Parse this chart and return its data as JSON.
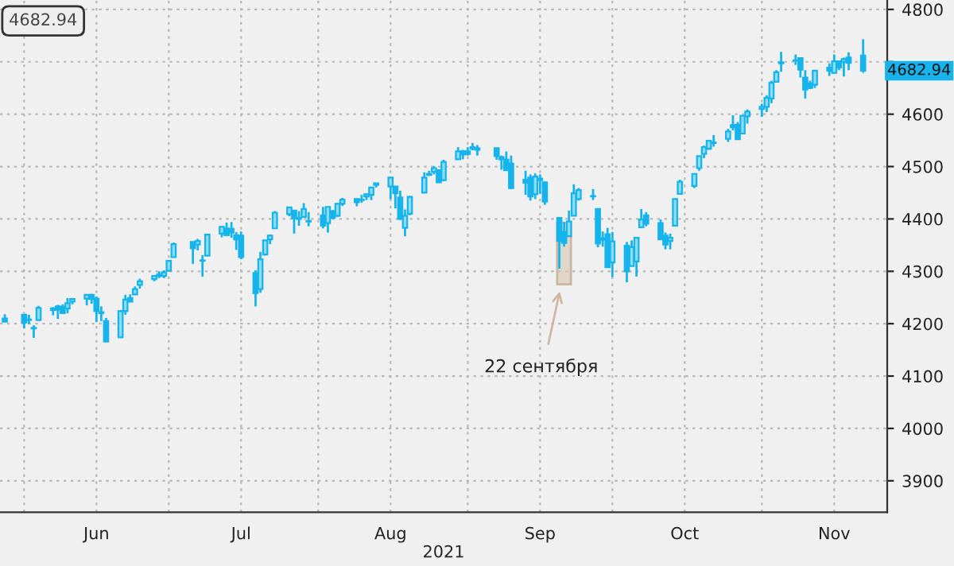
{
  "chart_data": {
    "type": "candlestick",
    "xlabel": "2021",
    "x": [
      "2021-05-28",
      "2021-06-01",
      "2021-06-02",
      "2021-06-03",
      "2021-06-04",
      "2021-06-07",
      "2021-06-08",
      "2021-06-09",
      "2021-06-10",
      "2021-06-11",
      "2021-06-14",
      "2021-06-15",
      "2021-06-16",
      "2021-06-17",
      "2021-06-18",
      "2021-06-21",
      "2021-06-22",
      "2021-06-23",
      "2021-06-24",
      "2021-06-25",
      "2021-06-28",
      "2021-06-29",
      "2021-06-30",
      "2021-07-01",
      "2021-07-02",
      "2021-07-06",
      "2021-07-07",
      "2021-07-08",
      "2021-07-09",
      "2021-07-12",
      "2021-07-13",
      "2021-07-14",
      "2021-07-15",
      "2021-07-16",
      "2021-07-19",
      "2021-07-20",
      "2021-07-21",
      "2021-07-22",
      "2021-07-23",
      "2021-07-26",
      "2021-07-27",
      "2021-07-28",
      "2021-07-29",
      "2021-07-30",
      "2021-08-02",
      "2021-08-03",
      "2021-08-04",
      "2021-08-05",
      "2021-08-06",
      "2021-08-09",
      "2021-08-10",
      "2021-08-11",
      "2021-08-12",
      "2021-08-13",
      "2021-08-16",
      "2021-08-17",
      "2021-08-18",
      "2021-08-19",
      "2021-08-20",
      "2021-08-23",
      "2021-08-24",
      "2021-08-25",
      "2021-08-26",
      "2021-08-27",
      "2021-08-30",
      "2021-08-31",
      "2021-09-01",
      "2021-09-02",
      "2021-09-03",
      "2021-09-07",
      "2021-09-08",
      "2021-09-09",
      "2021-09-10",
      "2021-09-13",
      "2021-09-14",
      "2021-09-15",
      "2021-09-16",
      "2021-09-17",
      "2021-09-20",
      "2021-09-21",
      "2021-09-22",
      "2021-09-23",
      "2021-09-24",
      "2021-09-27",
      "2021-09-28",
      "2021-09-29",
      "2021-09-30",
      "2021-10-01",
      "2021-10-04",
      "2021-10-05",
      "2021-10-06",
      "2021-10-07",
      "2021-10-08",
      "2021-10-11",
      "2021-10-12",
      "2021-10-13",
      "2021-10-14",
      "2021-10-15",
      "2021-10-18",
      "2021-10-19",
      "2021-10-20",
      "2021-10-21",
      "2021-10-22",
      "2021-10-25",
      "2021-10-26",
      "2021-10-27",
      "2021-10-28",
      "2021-10-29",
      "2021-11-01",
      "2021-11-02",
      "2021-11-03",
      "2021-11-04",
      "2021-11-05",
      "2021-11-08",
      "2021-11-09",
      "2021-11-10",
      "2021-11-11",
      "2021-11-12",
      "2021-11-15",
      "2021-11-16",
      "2021-11-17",
      "2021-11-18",
      "2021-11-19",
      "2021-11-22"
    ],
    "ohlc": [
      [
        4210,
        4218,
        4203,
        4204
      ],
      [
        4217,
        4218,
        4191,
        4202
      ],
      [
        4207,
        4217,
        4199,
        4208
      ],
      [
        4191,
        4197,
        4173,
        4192
      ],
      [
        4207,
        4234,
        4207,
        4230
      ],
      [
        4229,
        4232,
        4216,
        4226
      ],
      [
        4233,
        4236,
        4209,
        4227
      ],
      [
        4232,
        4237,
        4219,
        4220
      ],
      [
        4229,
        4249,
        4220,
        4239
      ],
      [
        4242,
        4248,
        4237,
        4247
      ],
      [
        4248,
        4255,
        4235,
        4255
      ],
      [
        4255,
        4257,
        4238,
        4247
      ],
      [
        4248,
        4252,
        4203,
        4224
      ],
      [
        4220,
        4233,
        4205,
        4222
      ],
      [
        4205,
        4211,
        4165,
        4166
      ],
      [
        4174,
        4226,
        4174,
        4224
      ],
      [
        4224,
        4255,
        4217,
        4246
      ],
      [
        4249,
        4256,
        4241,
        4242
      ],
      [
        4256,
        4271,
        4256,
        4266
      ],
      [
        4274,
        4286,
        4267,
        4281
      ],
      [
        4285,
        4293,
        4281,
        4291
      ],
      [
        4294,
        4300,
        4287,
        4291
      ],
      [
        4291,
        4302,
        4287,
        4298
      ],
      [
        4301,
        4320,
        4301,
        4320
      ],
      [
        4327,
        4355,
        4326,
        4352
      ],
      [
        4356,
        4357,
        4314,
        4344
      ],
      [
        4351,
        4362,
        4340,
        4358
      ],
      [
        4321,
        4331,
        4290,
        4320
      ],
      [
        4330,
        4372,
        4330,
        4370
      ],
      [
        4372,
        4386,
        4365,
        4385
      ],
      [
        4382,
        4393,
        4368,
        4369
      ],
      [
        4381,
        4394,
        4364,
        4374
      ],
      [
        4369,
        4375,
        4341,
        4361
      ],
      [
        4368,
        4376,
        4323,
        4327
      ],
      [
        4297,
        4302,
        4233,
        4258
      ],
      [
        4266,
        4337,
        4259,
        4323
      ],
      [
        4332,
        4359,
        4330,
        4359
      ],
      [
        4361,
        4370,
        4352,
        4368
      ],
      [
        4382,
        4415,
        4381,
        4412
      ],
      [
        4409,
        4422,
        4405,
        4422
      ],
      [
        4416,
        4416,
        4372,
        4401
      ],
      [
        4402,
        4415,
        4387,
        4400
      ],
      [
        4404,
        4430,
        4404,
        4419
      ],
      [
        4396,
        4413,
        4386,
        4395
      ],
      [
        4407,
        4423,
        4382,
        4387
      ],
      [
        4392,
        4424,
        4374,
        4423
      ],
      [
        4415,
        4417,
        4400,
        4402
      ],
      [
        4406,
        4430,
        4404,
        4429
      ],
      [
        4429,
        4440,
        4425,
        4437
      ],
      [
        4438,
        4439,
        4424,
        4432
      ],
      [
        4436,
        4446,
        4431,
        4436
      ],
      [
        4443,
        4449,
        4436,
        4447
      ],
      [
        4446,
        4461,
        4436,
        4460
      ],
      [
        4465,
        4468,
        4460,
        4468
      ],
      [
        4462,
        4480,
        4438,
        4479
      ],
      [
        4462,
        4462,
        4420,
        4449
      ],
      [
        4441,
        4454,
        4398,
        4400
      ],
      [
        4383,
        4418,
        4367,
        4406
      ],
      [
        4410,
        4444,
        4407,
        4442
      ],
      [
        4450,
        4489,
        4450,
        4479
      ],
      [
        4484,
        4492,
        4482,
        4486
      ],
      [
        4490,
        4501,
        4485,
        4497
      ],
      [
        4493,
        4495,
        4469,
        4470
      ],
      [
        4474,
        4513,
        4472,
        4509
      ],
      [
        4514,
        4537,
        4514,
        4529
      ],
      [
        4529,
        4532,
        4514,
        4523
      ],
      [
        4529,
        4537,
        4521,
        4524
      ],
      [
        4534,
        4545,
        4531,
        4537
      ],
      [
        4532,
        4541,
        4521,
        4535
      ],
      [
        4535,
        4535,
        4513,
        4520
      ],
      [
        4518,
        4521,
        4494,
        4514
      ],
      [
        4513,
        4529,
        4492,
        4493
      ],
      [
        4506,
        4521,
        4457,
        4459
      ],
      [
        4475,
        4492,
        4446,
        4469
      ],
      [
        4479,
        4485,
        4435,
        4443
      ],
      [
        4447,
        4487,
        4438,
        4481
      ],
      [
        4477,
        4485,
        4448,
        4474
      ],
      [
        4470,
        4471,
        4427,
        4433
      ],
      [
        4402,
        4403,
        4305,
        4358
      ],
      [
        4375,
        4394,
        4347,
        4354
      ],
      [
        4367,
        4416,
        4367,
        4395
      ],
      [
        4406,
        4466,
        4406,
        4449
      ],
      [
        4438,
        4459,
        4435,
        4455
      ],
      [
        4443,
        4457,
        4436,
        4443
      ],
      [
        4419,
        4419,
        4346,
        4353
      ],
      [
        4363,
        4376,
        4347,
        4360
      ],
      [
        4371,
        4383,
        4307,
        4308
      ],
      [
        4317,
        4375,
        4289,
        4357
      ],
      [
        4349,
        4356,
        4279,
        4300
      ],
      [
        4310,
        4359,
        4310,
        4346
      ],
      [
        4319,
        4365,
        4290,
        4364
      ],
      [
        4384,
        4419,
        4384,
        4399
      ],
      [
        4407,
        4413,
        4386,
        4391
      ],
      [
        4392,
        4399,
        4360,
        4361
      ],
      [
        4368,
        4374,
        4342,
        4351
      ],
      [
        4358,
        4372,
        4342,
        4364
      ],
      [
        4387,
        4439,
        4387,
        4438
      ],
      [
        4448,
        4475,
        4448,
        4471
      ],
      [
        4463,
        4487,
        4459,
        4486
      ],
      [
        4497,
        4520,
        4492,
        4520
      ],
      [
        4524,
        4540,
        4516,
        4537
      ],
      [
        4534,
        4551,
        4532,
        4549
      ],
      [
        4546,
        4560,
        4538,
        4545
      ],
      [
        4553,
        4572,
        4547,
        4567
      ],
      [
        4579,
        4598,
        4569,
        4575
      ],
      [
        4580,
        4585,
        4552,
        4552
      ],
      [
        4563,
        4598,
        4563,
        4597
      ],
      [
        4596,
        4609,
        4582,
        4605
      ],
      [
        4610,
        4620,
        4595,
        4614
      ],
      [
        4614,
        4636,
        4604,
        4631
      ],
      [
        4630,
        4664,
        4621,
        4660
      ],
      [
        4662,
        4684,
        4662,
        4680
      ],
      [
        4699,
        4719,
        4681,
        4697
      ],
      [
        4702,
        4714,
        4694,
        4702
      ],
      [
        4707,
        4708,
        4670,
        4685
      ],
      [
        4670,
        4684,
        4630,
        4647
      ],
      [
        4659,
        4664,
        4648,
        4650
      ],
      [
        4656,
        4684,
        4650,
        4683
      ],
      [
        4689,
        4697,
        4673,
        4683
      ],
      [
        4679,
        4714,
        4679,
        4701
      ],
      [
        4701,
        4701,
        4684,
        4689
      ],
      [
        4700,
        4708,
        4672,
        4705
      ],
      [
        4708,
        4718,
        4684,
        4698
      ],
      [
        4712,
        4743,
        4679,
        4682.94
      ]
    ],
    "color": "#16b4ec",
    "xlim": [
      "2021-05-27",
      "2021-11-27"
    ],
    "xticks": [
      {
        "value": "2021-06-01",
        "label": null
      },
      {
        "value": "2021-06-16",
        "label": "Jun"
      },
      {
        "value": "2021-07-01",
        "label": null
      },
      {
        "value": "2021-07-16",
        "label": "Jul"
      },
      {
        "value": "2021-08-01",
        "label": null
      },
      {
        "value": "2021-08-16",
        "label": "Aug"
      },
      {
        "value": "2021-09-01",
        "label": null
      },
      {
        "value": "2021-09-16",
        "label": "Sep"
      },
      {
        "value": "2021-10-01",
        "label": null
      },
      {
        "value": "2021-10-16",
        "label": "Oct"
      },
      {
        "value": "2021-11-01",
        "label": null
      },
      {
        "value": "2021-11-16",
        "label": "Nov"
      }
    ],
    "ylim": [
      3840,
      4818
    ],
    "yticks": [
      3900,
      4000,
      4100,
      4200,
      4300,
      4400,
      4500,
      4600,
      {
        "value": 4700,
        "label": null
      },
      4800
    ],
    "grid": true,
    "annotations": [
      "4682.94",
      {
        "text": "4682.94",
        "x": "2021-11-22",
        "y": 4682.94
      },
      "22 сентября"
    ]
  }
}
